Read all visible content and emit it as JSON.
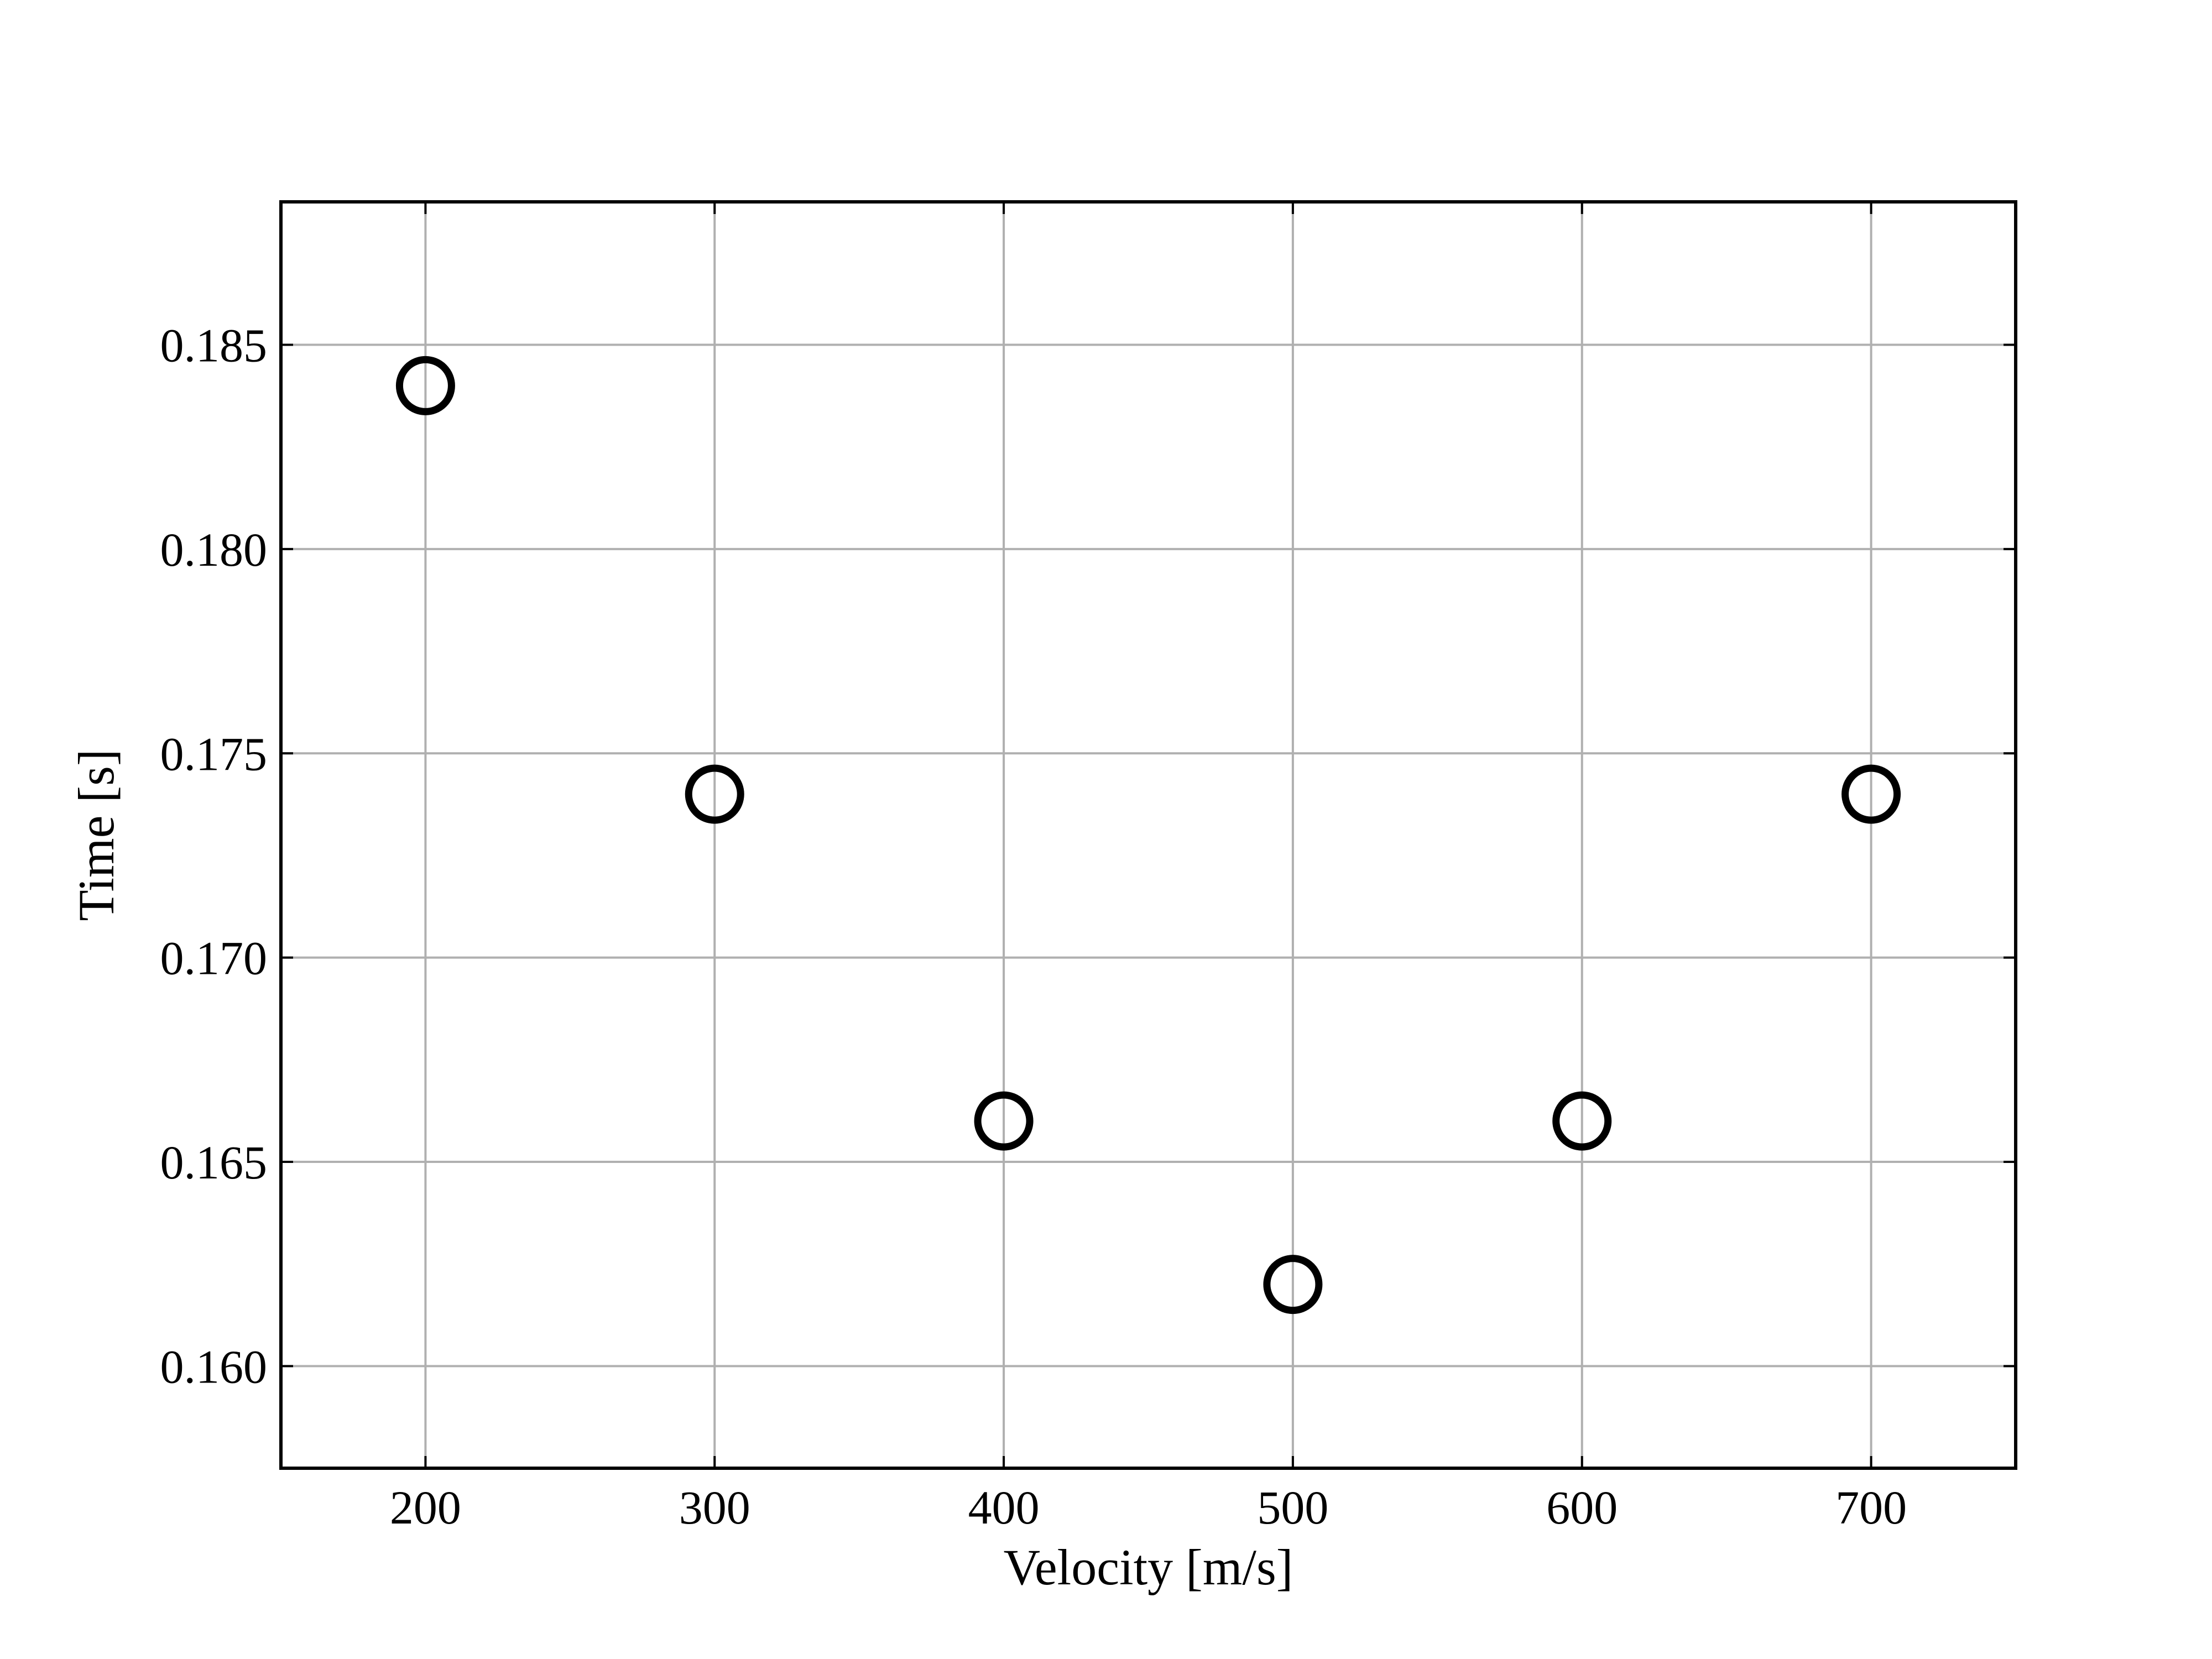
{
  "chart_data": {
    "type": "scatter",
    "title": "",
    "xlabel": "Velocity [m/s]",
    "ylabel": "Time [s]",
    "xlim": [
      150,
      750
    ],
    "ylim": [
      0.1575,
      0.1885
    ],
    "x_ticks": [
      200,
      300,
      400,
      500,
      600,
      700
    ],
    "x_tick_labels": [
      "200",
      "300",
      "400",
      "500",
      "600",
      "700"
    ],
    "y_ticks": [
      0.16,
      0.165,
      0.17,
      0.175,
      0.18,
      0.185
    ],
    "y_tick_labels": [
      "0.160",
      "0.165",
      "0.170",
      "0.175",
      "0.180",
      "0.185"
    ],
    "grid": true,
    "legend": "none",
    "colors": {
      "marker": "#000000",
      "grid": "#b0b0b0",
      "frame": "#000000"
    },
    "series": [
      {
        "marker": "open-circle",
        "points": [
          {
            "x": 200,
            "y": 0.184
          },
          {
            "x": 300,
            "y": 0.174
          },
          {
            "x": 400,
            "y": 0.166
          },
          {
            "x": 500,
            "y": 0.162
          },
          {
            "x": 600,
            "y": 0.166
          },
          {
            "x": 700,
            "y": 0.174
          }
        ]
      }
    ]
  }
}
